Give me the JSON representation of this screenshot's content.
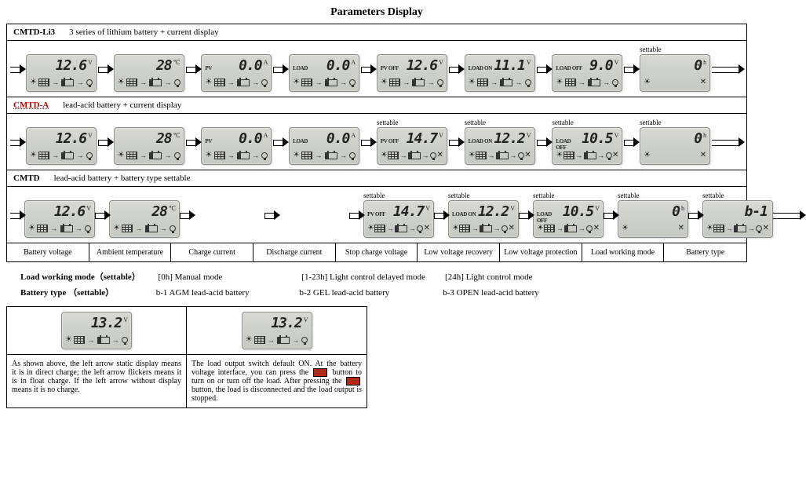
{
  "title": "Parameters Display",
  "sections": [
    {
      "code": "CMTD-Li3",
      "desc": "3 series of lithium battery + current display",
      "screens": [
        {
          "tag": "",
          "value": "12.6",
          "unit": "V",
          "icons": "sun panel arr batt arr bulb",
          "settable": false
        },
        {
          "tag": "",
          "value": "28",
          "unit": "℃",
          "icons": "sun panel arr batt arr bulb",
          "settable": false
        },
        {
          "tag": "PV",
          "value": "0.0",
          "unit": "A",
          "icons": "sun panel arr batt arr bulb",
          "settable": false
        },
        {
          "tag": "LOAD",
          "value": "0.0",
          "unit": "A",
          "icons": "sun panel arr batt arr bulb",
          "settable": false
        },
        {
          "tag": "PV OFF",
          "value": "12.6",
          "unit": "V",
          "icons": "sun panel arr batt arr bulb",
          "settable": false
        },
        {
          "tag": "LOAD ON",
          "value": "11.1",
          "unit": "V",
          "icons": "sun panel arr batt arr bulb",
          "settable": false
        },
        {
          "tag": "LOAD OFF",
          "value": "9.0",
          "unit": "V",
          "icons": "sun panel arr batt arr bulb",
          "settable": false
        },
        {
          "tag": "",
          "value": "0",
          "unit": "h",
          "icons": "sun wrench",
          "settable": true
        }
      ]
    },
    {
      "code": "CMTD-A",
      "desc": "lead-acid battery + current display",
      "screens": [
        {
          "tag": "",
          "value": "12.6",
          "unit": "V",
          "icons": "sun panel arr batt arr bulb",
          "settable": false
        },
        {
          "tag": "",
          "value": "28",
          "unit": "℃",
          "icons": "sun panel arr batt arr bulb",
          "settable": false
        },
        {
          "tag": "PV",
          "value": "0.0",
          "unit": "A",
          "icons": "sun panel arr batt arr bulb",
          "settable": false
        },
        {
          "tag": "LOAD",
          "value": "0.0",
          "unit": "A",
          "icons": "sun panel arr batt arr bulb",
          "settable": false
        },
        {
          "tag": "PV OFF",
          "value": "14.7",
          "unit": "V",
          "icons": "sun panel arr batt arr bulb wrench",
          "settable": true
        },
        {
          "tag": "LOAD ON",
          "value": "12.2",
          "unit": "V",
          "icons": "sun panel arr batt arr bulb wrench",
          "settable": true
        },
        {
          "tag": "LOAD OFF",
          "value": "10.5",
          "unit": "V",
          "icons": "sun panel arr batt arr bulb wrench",
          "settable": true
        },
        {
          "tag": "",
          "value": "0",
          "unit": "h",
          "icons": "sun wrench",
          "settable": true
        }
      ]
    },
    {
      "code": "CMTD",
      "desc": "lead-acid battery + battery type settable",
      "screens": [
        {
          "tag": "",
          "value": "12.6",
          "unit": "V",
          "icons": "sun panel arr batt arr bulb",
          "settable": false
        },
        {
          "tag": "",
          "value": "28",
          "unit": "℃",
          "icons": "sun panel arr batt arr bulb",
          "settable": false
        },
        {
          "tag": "",
          "value": "",
          "unit": "",
          "icons": "",
          "settable": false,
          "empty": true
        },
        {
          "tag": "",
          "value": "",
          "unit": "",
          "icons": "",
          "settable": false,
          "empty": true
        },
        {
          "tag": "PV OFF",
          "value": "14.7",
          "unit": "V",
          "icons": "sun panel arr batt arr bulb wrench",
          "settable": true
        },
        {
          "tag": "LOAD ON",
          "value": "12.2",
          "unit": "V",
          "icons": "sun panel arr batt arr bulb wrench",
          "settable": true
        },
        {
          "tag": "LOAD OFF",
          "value": "10.5",
          "unit": "V",
          "icons": "sun panel arr batt arr bulb wrench",
          "settable": true
        },
        {
          "tag": "",
          "value": "0",
          "unit": "h",
          "icons": "sun wrench",
          "settable": true
        },
        {
          "tag": "",
          "value": "b-1",
          "unit": "",
          "icons": "sun panel arr batt arr bulb wrench",
          "settable": true
        }
      ]
    }
  ],
  "labels": [
    "Battery voltage",
    "Ambient temperature",
    "Charge current",
    "Discharge current",
    "Stop charge voltage",
    "Low voltage recovery",
    "Low voltage protection",
    "Load working mode",
    "Battery type"
  ],
  "notes": {
    "mode_label": "Load working mode（settable）",
    "modes": [
      "[0h] Manual mode",
      "[1-23h] Light control delayed mode",
      "[24h] Light control mode"
    ],
    "btype_label": "Battery type  （settable）",
    "btypes": [
      "b-1   AGM lead-acid battery",
      "b-2   GEL lead-acid battery",
      "b-3   OPEN lead-acid battery"
    ]
  },
  "bottom": {
    "lcd_value": "13.2",
    "lcd_unit": "V",
    "left": "As shown above, the left arrow static display means it is in direct charge; the left arrow flickers means it is in float charge. If the left arrow without display means it is no charge.",
    "right_a": "The load output switch default ON. At the battery voltage interface, you can press the ",
    "right_b": " button to turn on or turn off the load. After pressing the ",
    "right_c": " button, the load is disconnected and the load output is stopped."
  },
  "settable_text": "settable",
  "colors": {
    "lcd_bg": "#cfd1cb",
    "border": "#000",
    "btn": "#b02a1a"
  }
}
